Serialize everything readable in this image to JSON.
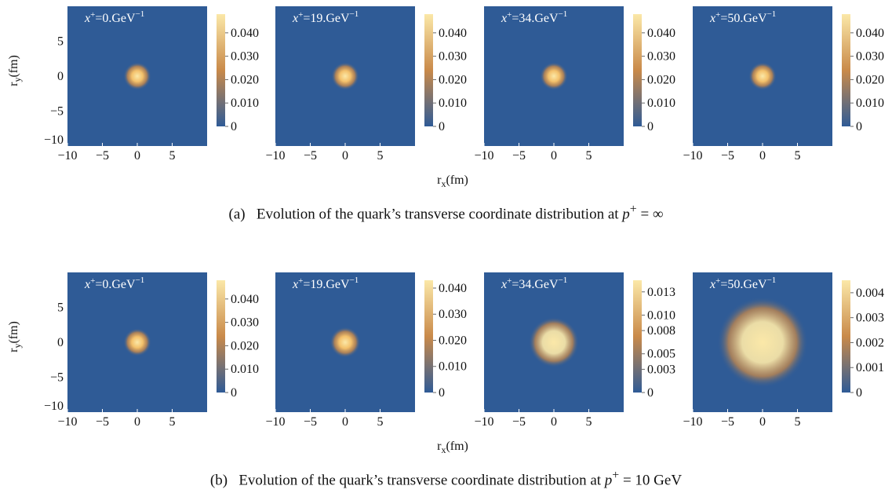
{
  "figure": {
    "rows": [
      {
        "caption_tag": "(a)",
        "caption_text": "Evolution of the quark’s transverse coordinate distribution at",
        "caption_math_var": "p",
        "caption_math_sup": "+",
        "caption_math_rest": " = ∞",
        "xlabel": "r",
        "xlabel_sub": "x",
        "xlabel_unit": "(fm)",
        "ylabel": "r",
        "ylabel_sub": "y",
        "ylabel_unit": "(fm)"
      },
      {
        "caption_tag": "(b)",
        "caption_text": "Evolution of the quark’s transverse coordinate distribution at",
        "caption_math_var": "p",
        "caption_math_sup": "+",
        "caption_math_rest": " = 10  GeV",
        "xlabel": "r",
        "xlabel_sub": "x",
        "xlabel_unit": "(fm)",
        "ylabel": "r",
        "ylabel_sub": "y",
        "ylabel_unit": "(fm)"
      }
    ],
    "colors": {
      "background": "#2f5b96",
      "mid": "#c98a4a",
      "peak": "#fbe8a8",
      "text_on_plot": "#ffffff"
    }
  },
  "chart_data": [
    {
      "type": "heatmap",
      "row": "a",
      "label_var": "x",
      "label_sup": "+",
      "label_value": "=0.GeV",
      "label_unit_sup": "−1",
      "xlim": [
        -10,
        10
      ],
      "ylim": [
        -10,
        10
      ],
      "xticks": [
        "−10",
        "−5",
        "0",
        "5"
      ],
      "yticks": [
        "5",
        "0",
        "−5",
        "−10"
      ],
      "colorbar_ticks": [
        "0.040",
        "0.030",
        "0.020",
        "0.010",
        "0"
      ],
      "colorbar_max": 0.048,
      "peak_value": 0.048,
      "spread_fm": 2.0
    },
    {
      "type": "heatmap",
      "row": "a",
      "label_var": "x",
      "label_sup": "+",
      "label_value": "=19.GeV",
      "label_unit_sup": "−1",
      "xlim": [
        -10,
        10
      ],
      "ylim": [
        -10,
        10
      ],
      "xticks": [
        "−10",
        "−5",
        "0",
        "5"
      ],
      "colorbar_ticks": [
        "0.040",
        "0.030",
        "0.020",
        "0.010",
        "0"
      ],
      "colorbar_max": 0.048,
      "peak_value": 0.048,
      "spread_fm": 2.0
    },
    {
      "type": "heatmap",
      "row": "a",
      "label_var": "x",
      "label_sup": "+",
      "label_value": "=34.GeV",
      "label_unit_sup": "−1",
      "xlim": [
        -10,
        10
      ],
      "ylim": [
        -10,
        10
      ],
      "xticks": [
        "−10",
        "−5",
        "0",
        "5"
      ],
      "colorbar_ticks": [
        "0.040",
        "0.030",
        "0.020",
        "0.010",
        "0"
      ],
      "colorbar_max": 0.048,
      "peak_value": 0.048,
      "spread_fm": 2.0
    },
    {
      "type": "heatmap",
      "row": "a",
      "label_var": "x",
      "label_sup": "+",
      "label_value": "=50.GeV",
      "label_unit_sup": "−1",
      "xlim": [
        -10,
        10
      ],
      "ylim": [
        -10,
        10
      ],
      "xticks": [
        "−10",
        "−5",
        "0",
        "5"
      ],
      "colorbar_ticks": [
        "0.040",
        "0.030",
        "0.020",
        "0.010",
        "0"
      ],
      "colorbar_max": 0.048,
      "peak_value": 0.048,
      "spread_fm": 2.0
    },
    {
      "type": "heatmap",
      "row": "b",
      "label_var": "x",
      "label_sup": "+",
      "label_value": "=0.GeV",
      "label_unit_sup": "−1",
      "xlim": [
        -10,
        10
      ],
      "ylim": [
        -10,
        10
      ],
      "xticks": [
        "−10",
        "−5",
        "0",
        "5"
      ],
      "yticks": [
        "5",
        "0",
        "−5",
        "−10"
      ],
      "colorbar_ticks": [
        "0.040",
        "0.030",
        "0.020",
        "0.010",
        "0"
      ],
      "colorbar_max": 0.048,
      "peak_value": 0.048,
      "spread_fm": 2.0
    },
    {
      "type": "heatmap",
      "row": "b",
      "label_var": "x",
      "label_sup": "+",
      "label_value": "=19.GeV",
      "label_unit_sup": "−1",
      "xlim": [
        -10,
        10
      ],
      "ylim": [
        -10,
        10
      ],
      "xticks": [
        "−10",
        "−5",
        "0",
        "5"
      ],
      "colorbar_ticks": [
        "0.040",
        "0.030",
        "0.020",
        "0.010",
        "0"
      ],
      "colorbar_max": 0.043,
      "peak_value": 0.043,
      "spread_fm": 2.2
    },
    {
      "type": "heatmap",
      "row": "b",
      "label_var": "x",
      "label_sup": "+",
      "label_value": "=34.GeV",
      "label_unit_sup": "−1",
      "xlim": [
        -10,
        10
      ],
      "ylim": [
        -10,
        10
      ],
      "xticks": [
        "−10",
        "−5",
        "0",
        "5"
      ],
      "colorbar_ticks": [
        "0.013",
        "0.010",
        "0.008",
        "0.005",
        "0.003",
        "0"
      ],
      "colorbar_max": 0.0145,
      "peak_value": 0.0145,
      "spread_fm": 3.6
    },
    {
      "type": "heatmap",
      "row": "b",
      "label_var": "x",
      "label_sup": "+",
      "label_value": "=50.GeV",
      "label_unit_sup": "−1",
      "xlim": [
        -10,
        10
      ],
      "ylim": [
        -10,
        10
      ],
      "xticks": [
        "−10",
        "−5",
        "0",
        "5"
      ],
      "colorbar_ticks": [
        "0.004",
        "0.003",
        "0.002",
        "0.001",
        "0"
      ],
      "colorbar_max": 0.0045,
      "peak_value": 0.0045,
      "spread_fm": 6.5
    }
  ]
}
